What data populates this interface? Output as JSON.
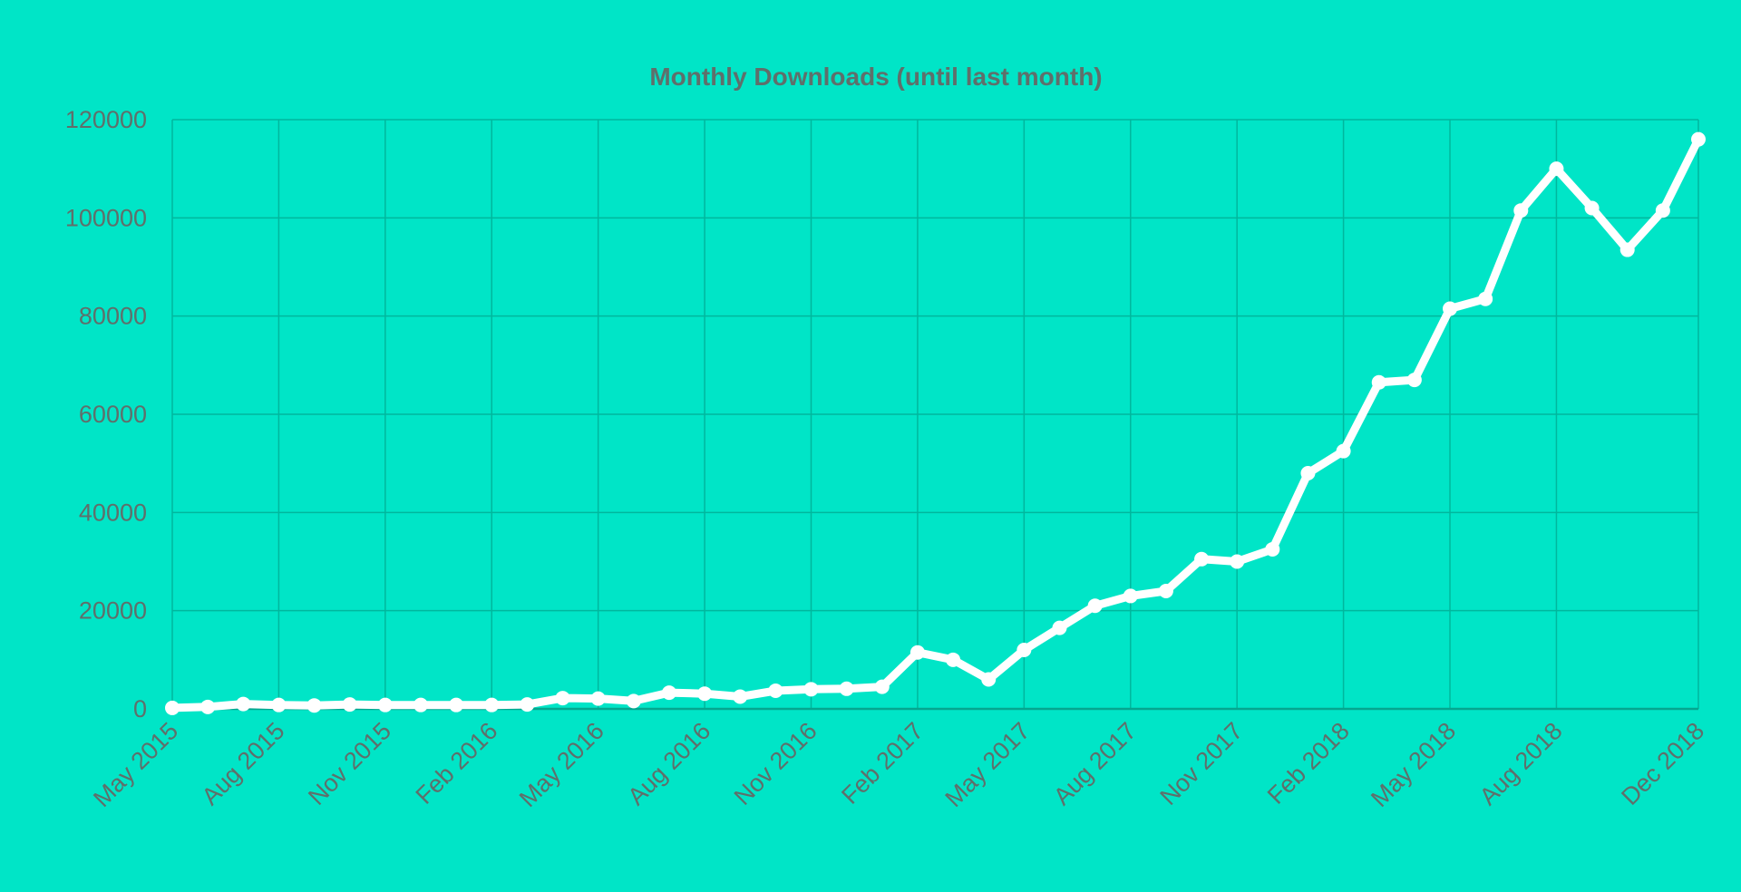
{
  "chart_data": {
    "type": "line",
    "title": "Monthly Downloads (until last month)",
    "xlabel": "",
    "ylabel": "",
    "ylim": [
      0,
      120000
    ],
    "yticks": [
      0,
      20000,
      40000,
      60000,
      80000,
      100000,
      120000
    ],
    "x_tick_labels": [
      "May 2015",
      "Aug 2015",
      "Nov 2015",
      "Feb 2016",
      "May 2016",
      "Aug 2016",
      "Nov 2016",
      "Feb 2017",
      "May 2017",
      "Aug 2017",
      "Nov 2017",
      "Feb 2018",
      "May 2018",
      "Aug 2018",
      "Dec 2018"
    ],
    "grid": true,
    "legend": "none",
    "line_color": "#ffffff",
    "background_color": "#00e5c7",
    "x": [
      "2015-05",
      "2015-06",
      "2015-07",
      "2015-08",
      "2015-09",
      "2015-10",
      "2015-11",
      "2015-12",
      "2016-01",
      "2016-02",
      "2016-03",
      "2016-04",
      "2016-05",
      "2016-06",
      "2016-07",
      "2016-08",
      "2016-09",
      "2016-10",
      "2016-11",
      "2016-12",
      "2017-01",
      "2017-02",
      "2017-03",
      "2017-04",
      "2017-05",
      "2017-06",
      "2017-07",
      "2017-08",
      "2017-09",
      "2017-10",
      "2017-11",
      "2017-12",
      "2018-01",
      "2018-02",
      "2018-03",
      "2018-04",
      "2018-05",
      "2018-06",
      "2018-07",
      "2018-08",
      "2018-09",
      "2018-10",
      "2018-11",
      "2018-12"
    ],
    "series": [
      {
        "name": "",
        "values": [
          200,
          400,
          1000,
          800,
          700,
          900,
          800,
          800,
          800,
          800,
          900,
          2200,
          2100,
          1600,
          3300,
          3100,
          2500,
          3700,
          4000,
          4100,
          4500,
          11500,
          10000,
          6000,
          12000,
          16500,
          21000,
          23000,
          24000,
          30500,
          30000,
          32500,
          48000,
          52500,
          66500,
          67000,
          81500,
          83500,
          101500,
          110000,
          102000,
          93500,
          101500,
          116000
        ]
      }
    ]
  }
}
